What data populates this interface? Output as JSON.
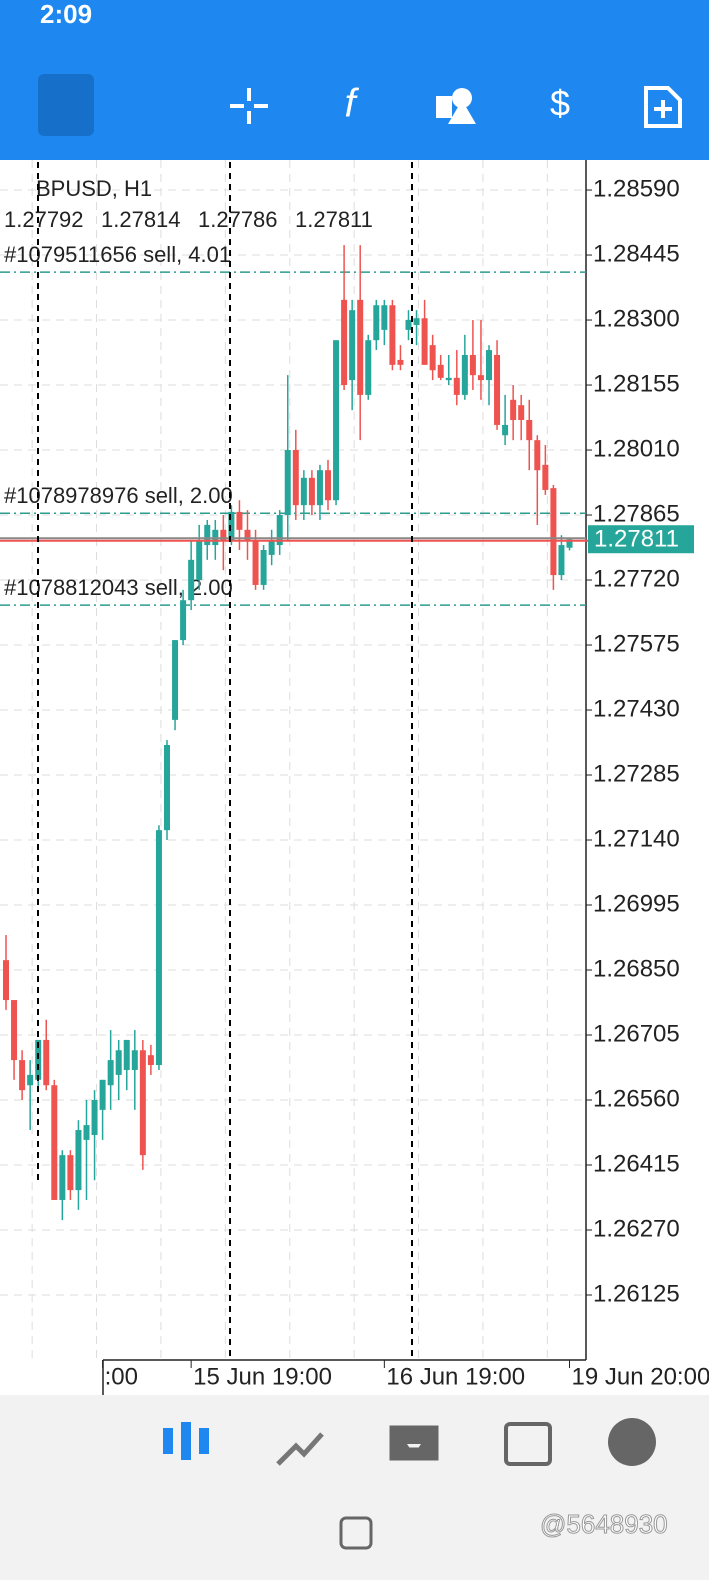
{
  "status_bar": {
    "time": "2:09"
  },
  "watermark": "@5648930",
  "chart_data": {
    "type": "candlestick",
    "symbol": "BPUSD, H1",
    "up_color": "#26a69a",
    "down_color": "#ef5350",
    "grid": true,
    "categories": [
      null,
      null,
      null,
      null,
      null,
      null,
      null,
      null,
      null,
      null,
      null,
      null,
      ":00",
      null,
      null,
      null,
      null,
      null,
      null,
      null,
      null,
      null,
      null,
      "15 Jun 19:00",
      null,
      null,
      null,
      null,
      null,
      null,
      null,
      null,
      null,
      null,
      null,
      null,
      null,
      null,
      null,
      null,
      null,
      null,
      null,
      null,
      null,
      null,
      null,
      "16 Jun 19:00",
      null,
      null,
      null,
      null,
      null,
      null,
      null,
      null,
      null,
      null,
      null,
      null,
      null,
      null,
      null,
      null,
      null,
      null,
      null,
      null,
      null,
      null,
      "19 Jun 20:00"
    ],
    "open": [
      1.26872,
      1.26783,
      1.26649,
      1.26593,
      1.26605,
      1.26694,
      1.26593,
      1.26337,
      1.26437,
      1.26359,
      1.26471,
      1.26482,
      1.26538,
      1.26593,
      1.26616,
      1.26627,
      1.26627,
      1.26671,
      1.2666,
      1.26638,
      1.27162,
      1.27408,
      1.27586,
      1.27675,
      1.2772,
      1.27798,
      1.27798,
      1.27832,
      1.27809,
      1.27872,
      1.27832,
      1.27809,
      1.27709,
      1.27776,
      1.27798,
      1.27865,
      1.2801,
      1.27887,
      1.27948,
      1.27887,
      1.27965,
      1.27898,
      1.28345,
      1.28166,
      1.28345,
      1.28133,
      1.28255,
      1.28278,
      1.28333,
      1.28211,
      1.28278,
      1.28289,
      1.28304,
      1.28244,
      1.282,
      1.28166,
      1.28171,
      1.28133,
      1.28222,
      1.28177,
      1.28166,
      1.28222,
      1.28043,
      1.28122,
      1.2811,
      1.28077,
      1.28032,
      1.27977,
      1.27925,
      1.27731,
      1.27792
    ],
    "high": [
      1.26928,
      1.26783,
      1.26671,
      1.26649,
      1.26694,
      1.26739,
      1.26605,
      1.26448,
      1.26448,
      1.26515,
      1.2656,
      1.26582,
      1.26605,
      1.26716,
      1.26694,
      1.26694,
      1.26716,
      1.26694,
      1.26683,
      1.27173,
      1.27363,
      1.27586,
      1.27698,
      1.27809,
      1.27843,
      1.27854,
      1.27854,
      1.27865,
      1.27887,
      1.27898,
      1.27876,
      1.27832,
      1.27798,
      1.27832,
      1.27876,
      1.28177,
      1.28055,
      1.27965,
      1.27965,
      1.27977,
      1.27988,
      1.28255,
      1.28467,
      1.28345,
      1.28467,
      1.28267,
      1.28345,
      1.28345,
      1.28345,
      1.28244,
      1.28322,
      1.28322,
      1.28345,
      1.28267,
      1.28222,
      1.28222,
      1.28233,
      1.28267,
      1.283,
      1.283,
      1.28244,
      1.28255,
      1.28133,
      1.28155,
      1.28133,
      1.28122,
      1.28043,
      1.28021,
      1.27932,
      1.2782,
      1.27814
    ],
    "low": [
      1.26761,
      1.26605,
      1.2656,
      1.26493,
      1.26582,
      1.26582,
      1.26337,
      1.26292,
      1.26337,
      1.26315,
      1.26337,
      1.26381,
      1.26471,
      1.26538,
      1.2656,
      1.26582,
      1.26538,
      1.26404,
      1.26616,
      1.26627,
      1.2714,
      1.27385,
      1.27575,
      1.27653,
      1.27698,
      1.27765,
      1.27765,
      1.27742,
      1.27798,
      1.27787,
      1.27765,
      1.27698,
      1.27698,
      1.27753,
      1.27776,
      1.27809,
      1.27854,
      1.27854,
      1.27865,
      1.27854,
      1.27876,
      1.27887,
      1.28144,
      1.28099,
      1.28032,
      1.28122,
      1.28233,
      1.28244,
      1.28188,
      1.28188,
      1.28255,
      1.28244,
      1.282,
      1.28166,
      1.28166,
      1.28155,
      1.2811,
      1.28122,
      1.28144,
      1.28122,
      1.2811,
      1.28055,
      1.28021,
      1.28032,
      1.28032,
      1.27965,
      1.27843,
      1.2791,
      1.27698,
      1.2772,
      1.27786
    ],
    "close": [
      1.26783,
      1.26649,
      1.26582,
      1.26616,
      1.26694,
      1.26593,
      1.26337,
      1.26437,
      1.26359,
      1.26493,
      1.26504,
      1.2656,
      1.26605,
      1.26649,
      1.26671,
      1.26694,
      1.26671,
      1.26437,
      1.26638,
      1.27162,
      1.27352,
      1.27586,
      1.27675,
      1.27765,
      1.27809,
      1.27843,
      1.27832,
      1.27809,
      1.27872,
      1.27832,
      1.27809,
      1.27709,
      1.27787,
      1.27809,
      1.27865,
      1.2801,
      1.27887,
      1.27948,
      1.27887,
      1.27965,
      1.27898,
      1.28255,
      1.28155,
      1.28322,
      1.28133,
      1.28255,
      1.28333,
      1.28333,
      1.282,
      1.282,
      1.283,
      1.28304,
      1.282,
      1.28188,
      1.28171,
      1.28171,
      1.28133,
      1.28222,
      1.28177,
      1.28166,
      1.28233,
      1.28066,
      1.28066,
      1.28077,
      1.28077,
      1.28032,
      1.27965,
      1.27921,
      1.27731,
      1.27798,
      1.27811
    ],
    "ylim": [
      1.2598,
      1.28657
    ],
    "yticks": [
      {
        "value": 1.2859,
        "label": "1.28590"
      },
      {
        "value": 1.28445,
        "label": "1.28445"
      },
      {
        "value": 1.283,
        "label": "1.28300"
      },
      {
        "value": 1.28155,
        "label": "1.28155"
      },
      {
        "value": 1.2801,
        "label": "1.28010"
      },
      {
        "value": 1.27865,
        "label": "1.27865"
      },
      {
        "value": 1.2772,
        "label": "1.27720"
      },
      {
        "value": 1.27575,
        "label": "1.27575"
      },
      {
        "value": 1.2743,
        "label": "1.27430"
      },
      {
        "value": 1.27285,
        "label": "1.27285"
      },
      {
        "value": 1.2714,
        "label": "1.27140"
      },
      {
        "value": 1.26995,
        "label": "1.26995"
      },
      {
        "value": 1.2685,
        "label": "1.26850"
      },
      {
        "value": 1.26705,
        "label": "1.26705"
      },
      {
        "value": 1.2656,
        "label": "1.26560"
      },
      {
        "value": 1.26415,
        "label": "1.26415"
      },
      {
        "value": 1.2627,
        "label": "1.26270"
      },
      {
        "value": 1.26125,
        "label": "1.26125"
      }
    ],
    "orders": [
      {
        "label": "#1079511656 sell, 4.01",
        "price": 1.28407,
        "color": "#2a9d8f"
      },
      {
        "label": "#1078978976 sell, 2.00",
        "price": 1.27869,
        "color": "#2a9d8f"
      },
      {
        "label": "#1078812043 sell, 2.00",
        "price": 1.27664,
        "color": "#2a9d8f"
      }
    ]
  }
}
